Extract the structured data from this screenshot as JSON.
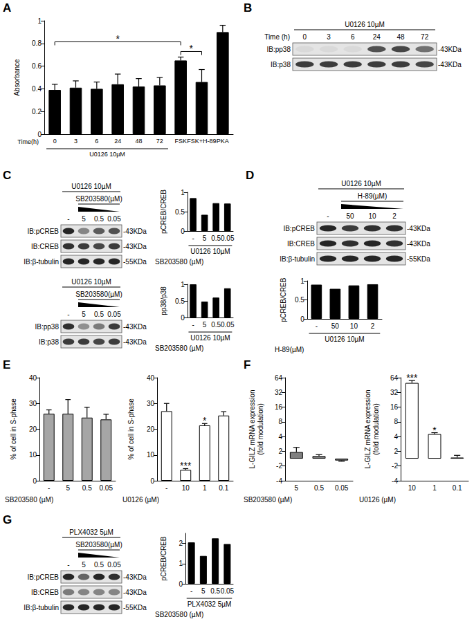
{
  "panel_labels": [
    "A",
    "B",
    "C",
    "D",
    "E",
    "F",
    "G"
  ],
  "chart_data": [
    {
      "type": "bar",
      "ylabel": "Absorbance",
      "xlabel": "Time(h)",
      "categories": [
        "0",
        "3",
        "6",
        "24",
        "48",
        "72",
        "FSK",
        "FSK+H-89",
        "PKA"
      ],
      "values": [
        0.39,
        0.41,
        0.4,
        0.44,
        0.42,
        0.43,
        0.65,
        0.46,
        0.9
      ],
      "errors": [
        0.05,
        0.06,
        0.06,
        0.09,
        0.07,
        0.07,
        0.03,
        0.11,
        0.06
      ],
      "color": "#000000",
      "ylim": [
        0,
        1
      ],
      "yticks": [
        0,
        0.2,
        0.4,
        0.6,
        0.8,
        1
      ],
      "grid": false,
      "group": {
        "text": "U0126 10µM",
        "from": "0",
        "to": "72"
      },
      "comparisons": [
        {
          "from": "0",
          "to": "FSK",
          "text": "*"
        },
        {
          "from": "FSK",
          "to": "FSK+H-89",
          "text": "*"
        }
      ]
    },
    {
      "type": "bar",
      "ylabel": "pCREB/CREB",
      "xlabel": "SB203580 (µM)",
      "categories": [
        "-",
        "5",
        "0.5",
        "0.05"
      ],
      "values": [
        0.85,
        0.42,
        0.72,
        0.71
      ],
      "color": "#000000",
      "ylim": [
        0,
        1
      ],
      "yticks": [
        0,
        0.5,
        1
      ],
      "grid": false,
      "group": {
        "text": "U0126 10µM",
        "from": "-",
        "to": "0.05"
      }
    },
    {
      "type": "bar",
      "ylabel": "pp38/p38",
      "xlabel": "SB203580 (µM)",
      "categories": [
        "-",
        "5",
        "0.5",
        "0.05"
      ],
      "values": [
        1.0,
        0.48,
        0.6,
        0.88
      ],
      "color": "#000000",
      "ylim": [
        0,
        1
      ],
      "yticks": [
        0,
        0.5,
        1
      ],
      "grid": false,
      "group": {
        "text": "U0126 10µM",
        "from": "-",
        "to": "0.05"
      }
    },
    {
      "type": "bar",
      "ylabel": "pCREB/CREB",
      "xlabel": "H-89(µM)",
      "categories": [
        "-",
        "50",
        "10",
        "2"
      ],
      "values": [
        0.9,
        0.79,
        0.88,
        0.91
      ],
      "color": "#000000",
      "ylim": [
        0,
        1
      ],
      "yticks": [
        0,
        0.5,
        1
      ],
      "grid": false,
      "group": {
        "text": "U0126 10µM",
        "from": "-",
        "to": "2"
      }
    },
    {
      "type": "bar",
      "ylabel": "% of cell in S-phase",
      "xlabel": "SB203580 (µM)",
      "categories": [
        "-",
        "5",
        "0.5",
        "0.05"
      ],
      "values": [
        26,
        26,
        24.5,
        23.8
      ],
      "errors": [
        1.5,
        5.5,
        4,
        2
      ],
      "color": "#a6a6a6",
      "ylim": [
        0,
        40
      ],
      "yticks": [
        0,
        10,
        20,
        30,
        40
      ],
      "grid": false
    },
    {
      "type": "bar",
      "ylabel": "% of cell in S-phase",
      "xlabel": "U0126 (µM)",
      "categories": [
        "-",
        "10",
        "1",
        "0.1"
      ],
      "values": [
        27,
        4.2,
        21.5,
        25.3
      ],
      "errors": [
        3,
        0.5,
        0.7,
        1.5
      ],
      "color": "#ffffff",
      "ylim": [
        0,
        40
      ],
      "yticks": [
        0,
        10,
        20,
        30,
        40
      ],
      "grid": false,
      "annotations": [
        {
          "category": "10",
          "text": "***"
        },
        {
          "category": "1",
          "text": "*"
        }
      ]
    },
    {
      "type": "bar",
      "ylabel": "L-GILZ mRNA expression\n(fold modulation)",
      "xlabel": "SB203580 (µM)",
      "categories": [
        "5",
        "0.5",
        "0.05"
      ],
      "values": [
        1.8,
        0.7,
        -0.5
      ],
      "errors": [
        0.6,
        0.4,
        0.2
      ],
      "color": "#808080",
      "ylim": [
        -4,
        64
      ],
      "yticks": [
        -4,
        -2,
        2,
        4,
        8,
        16,
        32,
        64
      ],
      "log": "y",
      "grid": false
    },
    {
      "type": "bar",
      "ylabel": "L-GILZ mRNA expression\n(fold modulation)",
      "xlabel": "U0126 (µM)",
      "categories": [
        "10",
        "1",
        "0.1"
      ],
      "values": [
        50,
        4.5,
        0.3
      ],
      "errors": [
        6,
        0.3,
        0.6
      ],
      "color": "#ffffff",
      "ylim": [
        -4,
        64
      ],
      "yticks": [
        -4,
        -2,
        2,
        4,
        8,
        16,
        32,
        64
      ],
      "log": "y",
      "grid": false,
      "annotations": [
        {
          "category": "10",
          "text": "***"
        },
        {
          "category": "1",
          "text": "*"
        }
      ]
    },
    {
      "type": "bar",
      "ylabel": "pCREB/CREB",
      "xlabel": "SB203580 (µM)",
      "categories": [
        "-",
        "5",
        "0.5",
        "0.05"
      ],
      "values": [
        2.05,
        1.38,
        2.25,
        1.97
      ],
      "color": "#000000",
      "ylim": [
        0,
        2.5
      ],
      "yticks": [
        0,
        1,
        2
      ],
      "grid": false,
      "group": {
        "text": "PLX4032 5µM",
        "from": "-",
        "to": "0.05"
      }
    }
  ],
  "blots": [
    {
      "header": "U0126 10µM",
      "lane_title": "Time (h)",
      "lanes": [
        "0",
        "3",
        "6",
        "24",
        "48",
        "72"
      ],
      "rows": [
        {
          "label": "IB:pp38",
          "mw": "-43KDa",
          "bands": [
            0.05,
            0.05,
            0.05,
            0.7,
            0.75,
            0.55
          ]
        },
        {
          "label": "IB:p38",
          "mw": "-43KDa",
          "bands": [
            0.8,
            0.8,
            0.8,
            0.8,
            0.8,
            0.75
          ]
        }
      ]
    },
    {
      "header": "U0126 10µM",
      "subheader": "SB203580(µM)",
      "span": [
        "5",
        "0.05"
      ],
      "wedge": true,
      "lanes": [
        "-",
        "5",
        "0.5",
        "0.05"
      ],
      "rows": [
        {
          "label": "IB:pCREB",
          "mw": "-43KDa",
          "bands": [
            0.9,
            0.45,
            0.65,
            0.7
          ]
        },
        {
          "label": "IB:CREB",
          "mw": "-43KDa",
          "bands": [
            0.85,
            0.8,
            0.75,
            0.8
          ]
        },
        {
          "label": "IB:β-tubulin",
          "mw": "-55KDa",
          "bands": [
            0.9,
            0.9,
            0.9,
            0.9
          ]
        }
      ]
    },
    {
      "header": "U0126 10µM",
      "subheader": "SB203580(µM)",
      "span": [
        "5",
        "0.05"
      ],
      "wedge": true,
      "lanes": [
        "-",
        "5",
        "0.5",
        "0.05"
      ],
      "rows": [
        {
          "label": "IB:pp38",
          "mw": "-43KDa",
          "bands": [
            0.85,
            0.4,
            0.5,
            0.8
          ]
        },
        {
          "label": "IB:p38",
          "mw": "-43KDa",
          "bands": [
            0.8,
            0.8,
            0.75,
            0.8
          ]
        }
      ]
    },
    {
      "header": "U0126 10µM",
      "subheader": "H-89(µM)",
      "span": [
        "50",
        "2"
      ],
      "wedge": true,
      "lanes": [
        "-",
        "50",
        "10",
        "2"
      ],
      "rows": [
        {
          "label": "IB:pCREB",
          "mw": "-43KDa",
          "bands": [
            0.9,
            0.8,
            0.85,
            0.85
          ]
        },
        {
          "label": "IB:CREB",
          "mw": "-43KDa",
          "bands": [
            0.9,
            0.85,
            0.9,
            0.85
          ]
        },
        {
          "label": "IB:β-tubulin",
          "mw": "-55KDa",
          "bands": [
            0.9,
            0.9,
            0.9,
            0.9
          ]
        }
      ]
    },
    {
      "header": "PLX4032 5µM",
      "subheader": "SB203580(µM)",
      "span": [
        "5",
        "0.05"
      ],
      "wedge": true,
      "lanes": [
        "-",
        "5",
        "0.5",
        "0.05"
      ],
      "rows": [
        {
          "label": "IB:pCREB",
          "mw": "-43KDa",
          "bands": [
            0.9,
            0.6,
            0.9,
            0.85
          ]
        },
        {
          "label": "IB:CREB",
          "mw": "-43KDa",
          "bands": [
            0.5,
            0.45,
            0.45,
            0.45
          ]
        },
        {
          "label": "IB:β-tubulin",
          "mw": "-55KDa",
          "bands": [
            0.9,
            0.9,
            0.9,
            0.9
          ]
        }
      ]
    }
  ]
}
